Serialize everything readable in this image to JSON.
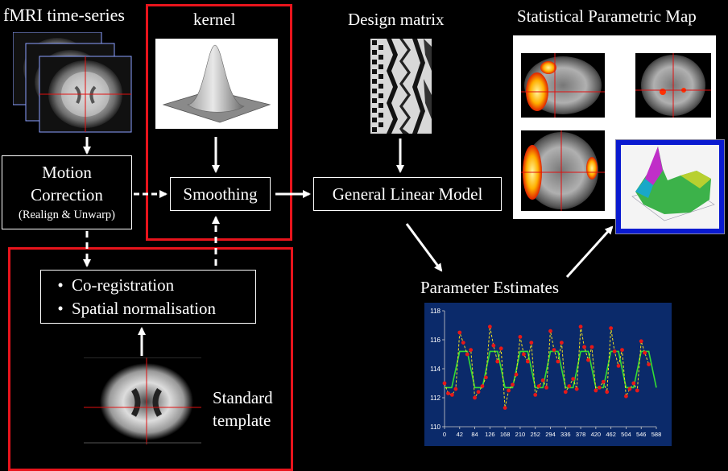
{
  "labels": {
    "fmri_series": "fMRI time-series",
    "kernel": "kernel",
    "design_matrix": "Design matrix",
    "spm": "Statistical Parametric Map",
    "parameter_estimates": "Parameter Estimates",
    "standard_template_line1": "Standard",
    "standard_template_line2": "template"
  },
  "boxes": {
    "motion_line1": "Motion",
    "motion_line2": "Correction",
    "motion_line3": "(Realign & Unwarp)",
    "smoothing": "Smoothing",
    "glm": "General Linear Model",
    "coreg": "Co-registration",
    "normalisation": "Spatial normalisation",
    "bullet": "•"
  },
  "colors": {
    "highlight_frame": "#e8141c",
    "plot_bg": "#0b2a6a",
    "fitted_line": "#33dd33",
    "data_line": "#f0e020",
    "data_points": "#e81818"
  },
  "chart_data": {
    "type": "line",
    "xticks": [
      "0",
      "42",
      "84",
      "126",
      "168",
      "210",
      "252",
      "294",
      "336",
      "378",
      "420",
      "462",
      "504",
      "546",
      "588"
    ],
    "yticks": [
      "110",
      "112",
      "114",
      "116",
      "118"
    ],
    "xlim": [
      0,
      588
    ],
    "ylim": [
      110,
      118
    ],
    "series": [
      {
        "x": [
          0,
          20,
          42,
          63,
          84,
          105,
          126,
          147,
          168,
          189,
          210,
          231,
          252,
          273,
          294,
          315,
          336,
          357,
          378,
          399,
          420,
          441,
          462,
          483,
          504,
          525,
          546,
          567,
          588
        ],
        "values": [
          112.7,
          112.7,
          115.2,
          115.2,
          112.7,
          112.7,
          115.2,
          115.2,
          112.7,
          112.7,
          115.2,
          115.2,
          112.7,
          112.7,
          115.2,
          115.2,
          112.7,
          112.7,
          115.2,
          115.2,
          112.7,
          112.7,
          115.2,
          115.2,
          112.7,
          112.7,
          115.2,
          115.2,
          112.7
        ]
      },
      {
        "x": [
          0,
          10,
          21,
          31,
          42,
          52,
          63,
          73,
          84,
          94,
          105,
          115,
          126,
          136,
          147,
          157,
          168,
          178,
          189,
          199,
          210,
          220,
          231,
          241,
          252,
          262,
          273,
          283,
          294,
          304,
          315,
          325,
          336,
          346,
          357,
          367,
          378,
          388,
          399,
          409,
          420,
          430,
          441,
          451,
          462,
          472,
          483,
          493,
          504,
          514,
          525,
          535,
          546,
          556,
          567
        ],
        "values": [
          113,
          112.3,
          112.2,
          112.6,
          116.5,
          115.8,
          115,
          115.3,
          112,
          112.4,
          112.8,
          113.4,
          116.9,
          115.6,
          114.5,
          115.4,
          111.3,
          112.5,
          112.9,
          113.6,
          116.2,
          115,
          114.5,
          115.8,
          112.2,
          112.8,
          113.2,
          112.7,
          116.6,
          115.3,
          114.5,
          115.8,
          112.4,
          112.8,
          113.3,
          112.6,
          116.9,
          115.5,
          114.6,
          115.5,
          112.5,
          112.7,
          113.1,
          112.4,
          116.8,
          115.2,
          114.2,
          115.3,
          112.1,
          112.6,
          113,
          112.5,
          115.9,
          115.1,
          114.3
        ]
      }
    ]
  }
}
